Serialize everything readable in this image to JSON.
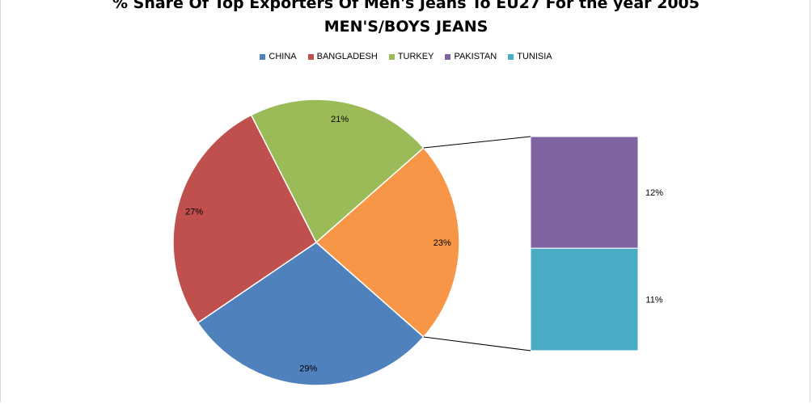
{
  "chart_data": {
    "type": "pie",
    "title_line1": "% Share Of Top Exporters Of Men's Jeans To EU27 For the year 2005",
    "title_line2": "MEN'S/BOYS JEANS",
    "legend_position": "top",
    "subtype": "pie-of-pie (bar of pie)",
    "categories": [
      "CHINA",
      "BANGLADESH",
      "TURKEY",
      "PAKISTAN",
      "TUNISIA"
    ],
    "values": [
      29,
      27,
      21,
      12,
      11
    ],
    "data_labels": [
      "29%",
      "27%",
      "21%",
      "12%",
      "11%"
    ],
    "colors": [
      "#4F81BD",
      "#C0504D",
      "#9BBB59",
      "#8064A2",
      "#4BACC6"
    ],
    "other_slice": {
      "value": 23,
      "label": "23%",
      "color": "#F79646",
      "members": [
        "PAKISTAN",
        "TUNISIA"
      ]
    }
  }
}
